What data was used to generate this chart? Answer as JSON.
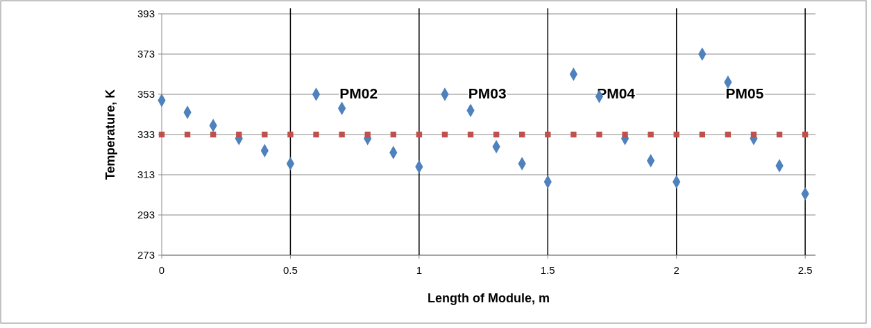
{
  "chart_data": {
    "type": "scatter",
    "xlabel": "Length of Module, m",
    "ylabel": "Temperature, K",
    "xlim": [
      0,
      2.54
    ],
    "xticks": [
      0,
      {
        "value": 0.5,
        "label": "0.5"
      },
      1,
      {
        "value": 1.5,
        "label": "1.5"
      },
      2,
      {
        "value": 2.5,
        "label": "2.5"
      }
    ],
    "ylim": [
      273,
      393
    ],
    "yticks": [
      273,
      293,
      313,
      333,
      353,
      373,
      393
    ],
    "grid": "y",
    "series": [
      {
        "color": "#4f81bd",
        "marker": "diamond",
        "x": [
          0,
          0.1,
          0.2,
          0.3,
          0.4,
          0.5,
          0.6,
          0.7,
          0.8,
          0.9,
          1.0,
          1.1,
          1.2,
          1.3,
          1.4,
          1.5,
          1.6,
          1.7,
          1.8,
          1.9,
          2.0,
          2.1,
          2.2,
          2.3,
          2.4,
          2.5
        ],
        "values": [
          350,
          344,
          337.5,
          331,
          325,
          318.5,
          353,
          346,
          331,
          324,
          317,
          353,
          345,
          327,
          318.5,
          309.5,
          363,
          352,
          331,
          320,
          309.5,
          373,
          359,
          331,
          317.5,
          303.5
        ]
      },
      {
        "color": "#c0504d",
        "marker": "square",
        "x": [
          0,
          0.1,
          0.2,
          0.3,
          0.4,
          0.5,
          0.6,
          0.7,
          0.8,
          0.9,
          1.0,
          1.1,
          1.2,
          1.3,
          1.4,
          1.5,
          1.6,
          1.7,
          1.8,
          1.9,
          2.0,
          2.1,
          2.2,
          2.3,
          2.4,
          2.5
        ],
        "values": [
          333,
          333,
          333,
          333,
          333,
          333,
          333,
          333,
          333,
          333,
          333,
          333,
          333,
          333,
          333,
          333,
          333,
          333,
          333,
          333,
          333,
          333,
          333,
          333,
          333,
          333
        ]
      }
    ],
    "ref_lines": [
      {
        "axis": "x",
        "value": 0.5,
        "color": "#000000"
      },
      {
        "axis": "x",
        "value": 1,
        "color": "#000000"
      },
      {
        "axis": "x",
        "value": 1.5,
        "color": "#000000"
      },
      {
        "axis": "x",
        "value": 2,
        "color": "#000000"
      },
      {
        "axis": "x",
        "value": 2.5,
        "color": "#000000"
      }
    ],
    "annotations": [
      "PM02",
      "PM03",
      "PM04",
      "PM05"
    ]
  }
}
